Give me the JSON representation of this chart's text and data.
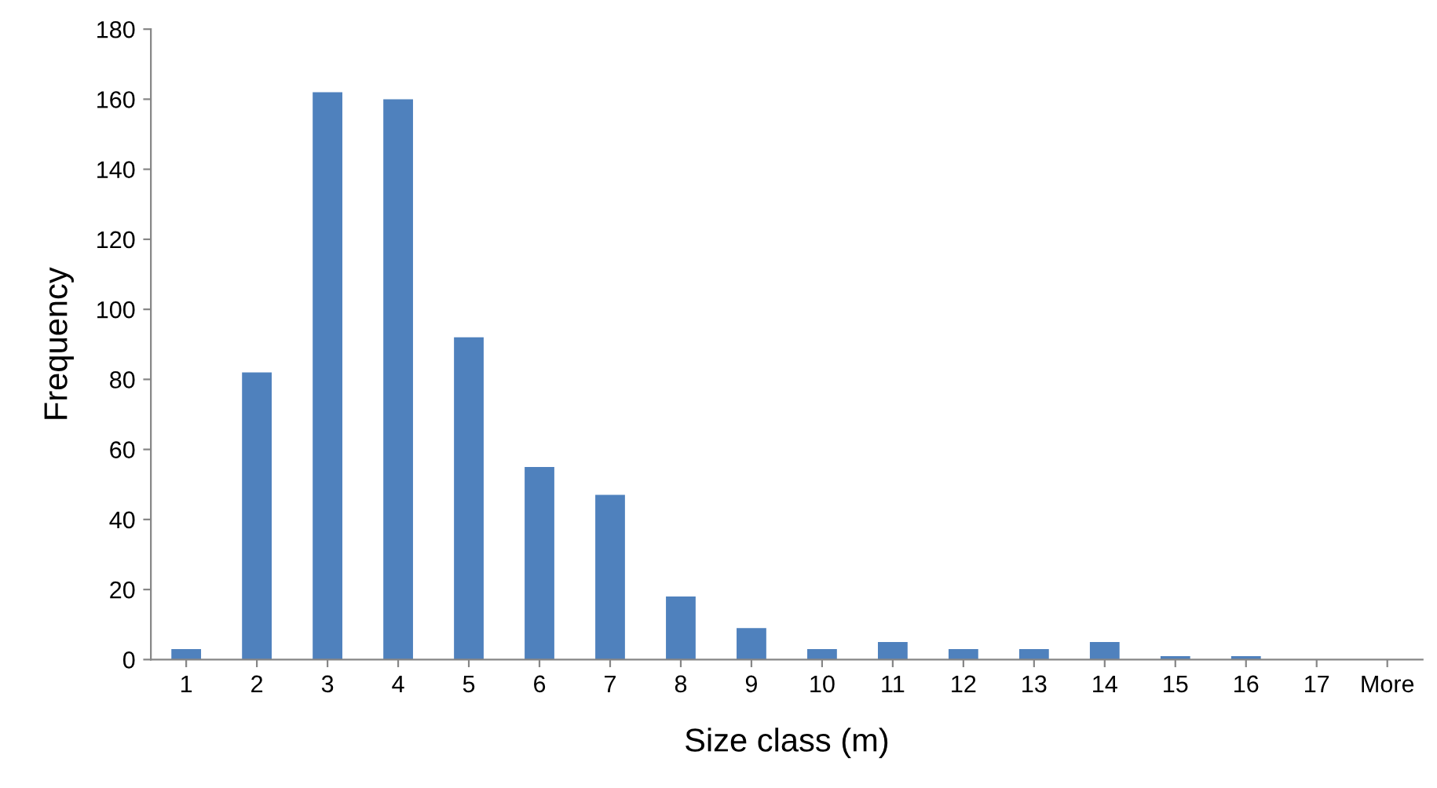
{
  "chart_data": {
    "type": "bar",
    "xlabel": "Size class (m)",
    "ylabel": "Frequency",
    "categories": [
      "1",
      "2",
      "3",
      "4",
      "5",
      "6",
      "7",
      "8",
      "9",
      "10",
      "11",
      "12",
      "13",
      "14",
      "15",
      "16",
      "17",
      "More"
    ],
    "values": [
      3,
      82,
      162,
      160,
      92,
      55,
      47,
      18,
      9,
      3,
      5,
      3,
      3,
      5,
      1,
      1,
      0,
      0
    ],
    "color": "#4f81bd",
    "ylim": [
      0,
      180
    ],
    "yticks": [
      0,
      20,
      40,
      60,
      80,
      100,
      120,
      140,
      160,
      180
    ],
    "grid": false,
    "legend": false
  }
}
